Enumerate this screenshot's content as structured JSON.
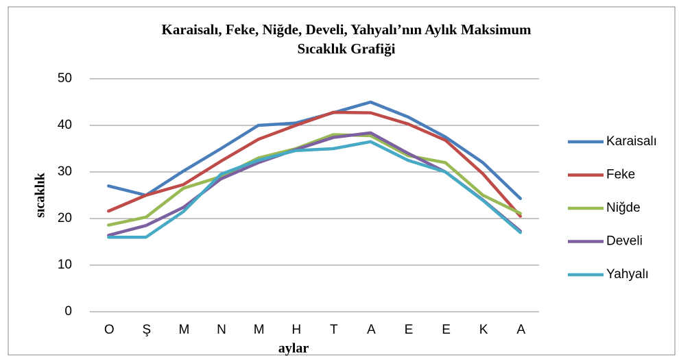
{
  "chart_data": {
    "type": "line",
    "title": [
      "Karaisalı, Feke, Niğde, Develi, Yahyalı’nın Aylık Maksimum",
      "Sıcaklık Grafiği"
    ],
    "x_label": "aylar",
    "y_label": "sıcaklık",
    "categories": [
      "O",
      "Ş",
      "M",
      "N",
      "M",
      "H",
      "T",
      "A",
      "E",
      "E",
      "K",
      "A"
    ],
    "series": [
      {
        "name": "Karaisalı",
        "color": "#4a7ebb",
        "values": [
          27,
          25,
          30.2,
          35,
          40,
          40.5,
          42.7,
          45,
          41.8,
          37.5,
          32,
          24.3
        ]
      },
      {
        "name": "Feke",
        "color": "#be4b48",
        "values": [
          21.6,
          25,
          27.3,
          32.3,
          37,
          40,
          42.8,
          42.7,
          40.3,
          36.8,
          29.6,
          20.5
        ]
      },
      {
        "name": "Niğde",
        "color": "#98b954",
        "values": [
          18.6,
          20.3,
          26.5,
          29,
          33,
          35,
          38,
          37.8,
          33.5,
          32,
          25,
          21.1
        ]
      },
      {
        "name": "Develi",
        "color": "#7d60a0",
        "values": [
          16.4,
          18.5,
          22.4,
          28.5,
          32,
          34.8,
          37.4,
          38.4,
          34,
          30,
          24,
          17.3
        ]
      },
      {
        "name": "Yahyalı",
        "color": "#46aac5",
        "values": [
          16,
          16,
          21.5,
          29.5,
          32.5,
          34.6,
          35,
          36.5,
          32.5,
          30,
          23.9,
          17
        ]
      }
    ],
    "ylim": [
      0,
      50
    ],
    "yticks": [
      0,
      10,
      20,
      30,
      40,
      50
    ],
    "grid": true,
    "legend": "right"
  }
}
